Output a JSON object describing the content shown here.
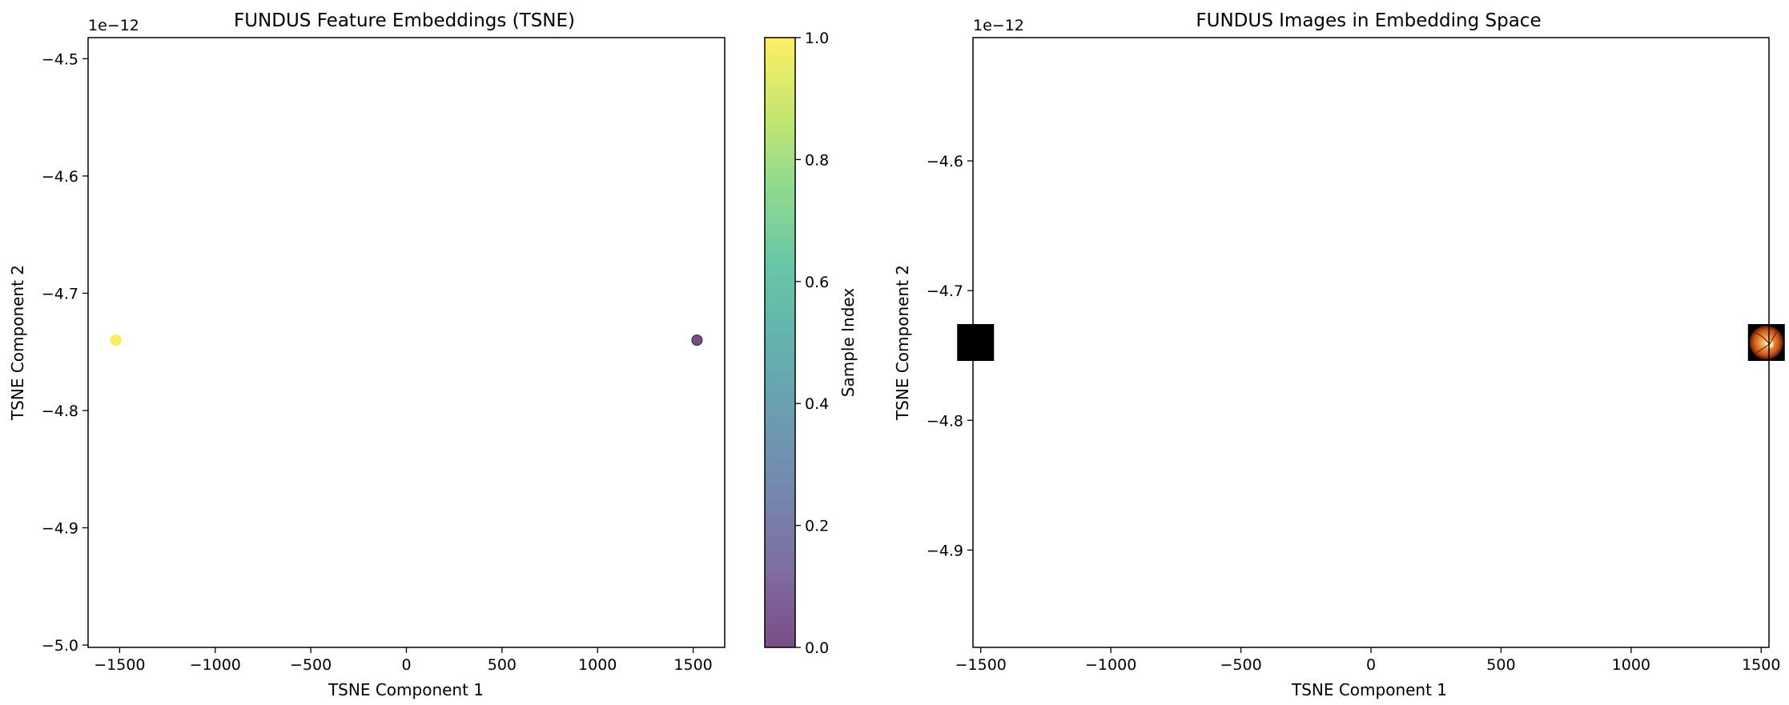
{
  "chart_data": [
    {
      "type": "scatter",
      "title": "FUNDUS Feature Embeddings (TSNE)",
      "xlabel": "TSNE Component 1",
      "ylabel": "TSNE Component 2",
      "xlim": [
        -1665,
        1665
      ],
      "ylim": [
        -5.002,
        -4.482
      ],
      "y_offset_text": "1e−12",
      "xticks": [
        -1500,
        -1000,
        -500,
        0,
        500,
        1000,
        1500
      ],
      "xtick_labels": [
        "−1500",
        "−1000",
        "−500",
        "0",
        "500",
        "1000",
        "1500"
      ],
      "yticks": [
        -5.0,
        -4.9,
        -4.8,
        -4.7,
        -4.6,
        -4.5
      ],
      "ytick_labels": [
        "−5.0",
        "−4.9",
        "−4.8",
        "−4.7",
        "−4.6",
        "−4.5"
      ],
      "grid": false,
      "colormap": "viridis",
      "points": [
        {
          "x": -1520,
          "y": -4.74,
          "sample_index": 1,
          "color": "#fde725"
        },
        {
          "x": 1520,
          "y": -4.74,
          "sample_index": 0,
          "color": "#440154"
        }
      ],
      "colorbar": {
        "label": "Sample Index",
        "range": [
          0.0,
          1.0
        ],
        "ticks": [
          0.0,
          0.2,
          0.4,
          0.6,
          0.8,
          1.0
        ],
        "tick_labels": [
          "0.0",
          "0.2",
          "0.4",
          "0.6",
          "0.8",
          "1.0"
        ]
      }
    },
    {
      "type": "scatter",
      "title": "FUNDUS Images in Embedding Space",
      "xlabel": "TSNE Component 1",
      "ylabel": "TSNE Component 2",
      "xlim": [
        -1530,
        1530
      ],
      "ylim": [
        -4.975,
        -4.505
      ],
      "y_offset_text": "1e−12",
      "xticks": [
        -1500,
        -1000,
        -500,
        0,
        500,
        1000,
        1500
      ],
      "xtick_labels": [
        "−1500",
        "−1000",
        "−500",
        "0",
        "500",
        "1000",
        "1500"
      ],
      "yticks": [
        -4.9,
        -4.8,
        -4.7,
        -4.6
      ],
      "ytick_labels": [
        "−4.9",
        "−4.8",
        "−4.7",
        "−4.6"
      ],
      "grid": false,
      "images": [
        {
          "x": -1520,
          "y": -4.74,
          "kind": "dark fundus thumbnail",
          "color": "#000000"
        },
        {
          "x": 1520,
          "y": -4.74,
          "kind": "fundus thumbnail",
          "color": "#c8541a"
        }
      ]
    }
  ]
}
